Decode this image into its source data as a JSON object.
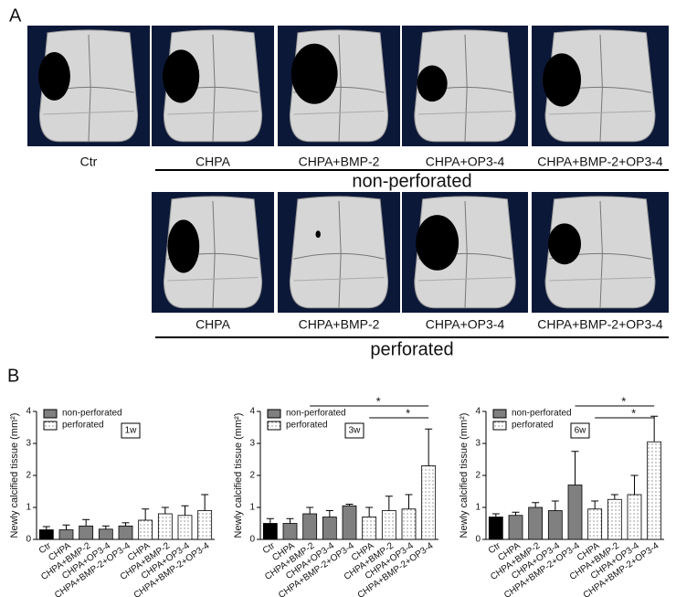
{
  "panel_a": {
    "label": "A",
    "top_row": [
      "Ctr",
      "CHPA",
      "CHPA+BMP-2",
      "CHPA+OP3-4",
      "CHPA+BMP-2+OP3-4"
    ],
    "top_group": "non-perforated",
    "bottom_row": [
      "CHPA",
      "CHPA+BMP-2",
      "CHPA+OP3-4",
      "CHPA+BMP-2+OP3-4"
    ],
    "bottom_group": "perforated"
  },
  "panel_b_label": "B",
  "chart_data": [
    {
      "type": "bar",
      "title": "1w",
      "y_label": "Newly calcified tissue (mm²)",
      "categories": [
        "Ctr",
        "CHPA",
        "CHPA+BMP-2",
        "CHPA+OP3-4",
        "CHPA+BMP-2+OP3-4",
        "CHPA",
        "CHPA+BMP-2",
        "CHPA+OP3-4",
        "CHPA+BMP-2+OP3-4"
      ],
      "ylim": [
        0,
        4
      ],
      "yticks": [
        0,
        1,
        2,
        3,
        4
      ],
      "series": [
        {
          "name": "non-perforated",
          "color": "#808080",
          "colors": [
            "#000000",
            "#808080",
            "#808080",
            "#808080",
            "#808080",
            null,
            null,
            null,
            null
          ],
          "values": [
            0.3,
            0.3,
            0.42,
            0.32,
            0.42,
            null,
            null,
            null,
            null
          ],
          "errors": [
            0.1,
            0.15,
            0.2,
            0.1,
            0.1,
            null,
            null,
            null,
            null
          ]
        },
        {
          "name": "perforated",
          "color": "#ffffff",
          "pattern": "dotted",
          "values": [
            null,
            null,
            null,
            null,
            null,
            0.6,
            0.8,
            0.75,
            0.9
          ],
          "errors": [
            null,
            null,
            null,
            null,
            null,
            0.35,
            0.2,
            0.3,
            0.5
          ]
        }
      ],
      "annotations": []
    },
    {
      "type": "bar",
      "title": "3w",
      "y_label": "Newly calcified tissue (mm²)",
      "categories": [
        "Ctr",
        "CHPA",
        "CHPA+BMP-2",
        "CHPA+OP3-4",
        "CHPA+BMP-2+OP3-4",
        "CHPA",
        "CHPA+BMP-2",
        "CHPA+OP3-4",
        "CHPA+BMP-2+OP3-4"
      ],
      "ylim": [
        0,
        4
      ],
      "yticks": [
        0,
        1,
        2,
        3,
        4
      ],
      "series": [
        {
          "name": "non-perforated",
          "color": "#808080",
          "colors": [
            "#000000",
            "#808080",
            "#808080",
            "#808080",
            "#808080",
            null,
            null,
            null,
            null
          ],
          "values": [
            0.5,
            0.5,
            0.8,
            0.7,
            1.05,
            null,
            null,
            null,
            null
          ],
          "errors": [
            0.15,
            0.15,
            0.2,
            0.2,
            0.05,
            null,
            null,
            null,
            null
          ]
        },
        {
          "name": "perforated",
          "color": "#ffffff",
          "pattern": "dotted",
          "values": [
            null,
            null,
            null,
            null,
            null,
            0.7,
            0.9,
            0.95,
            2.3
          ],
          "errors": [
            null,
            null,
            null,
            null,
            null,
            0.3,
            0.45,
            0.45,
            1.15
          ]
        }
      ],
      "annotations": [
        {
          "text": "*",
          "from": 2,
          "to": 8
        },
        {
          "text": "*",
          "from": 5,
          "to": 8
        }
      ]
    },
    {
      "type": "bar",
      "title": "6w",
      "y_label": "Newly calcified tissue (mm²)",
      "categories": [
        "Ctr",
        "CHPA",
        "CHPA+BMP-2",
        "CHPA+OP3-4",
        "CHPA+BMP-2+OP3-4",
        "CHPA",
        "CHPA+BMP-2",
        "CHPA+OP3-4",
        "CHPA+BMP-2+OP3-4"
      ],
      "ylim": [
        0,
        4
      ],
      "yticks": [
        0,
        1,
        2,
        3,
        4
      ],
      "series": [
        {
          "name": "non-perforated",
          "color": "#808080",
          "colors": [
            "#000000",
            "#808080",
            "#808080",
            "#808080",
            "#808080",
            null,
            null,
            null,
            null
          ],
          "values": [
            0.7,
            0.75,
            1.0,
            0.9,
            1.7,
            null,
            null,
            null,
            null
          ],
          "errors": [
            0.1,
            0.1,
            0.15,
            0.3,
            1.05,
            null,
            null,
            null,
            null
          ]
        },
        {
          "name": "perforated",
          "color": "#ffffff",
          "pattern": "dotted",
          "values": [
            null,
            null,
            null,
            null,
            null,
            0.95,
            1.25,
            1.4,
            3.05
          ],
          "errors": [
            null,
            null,
            null,
            null,
            null,
            0.25,
            0.15,
            0.6,
            0.8
          ]
        }
      ],
      "annotations": [
        {
          "text": "*",
          "from": 4,
          "to": 8
        },
        {
          "text": "*",
          "from": 5,
          "to": 8
        }
      ]
    }
  ]
}
